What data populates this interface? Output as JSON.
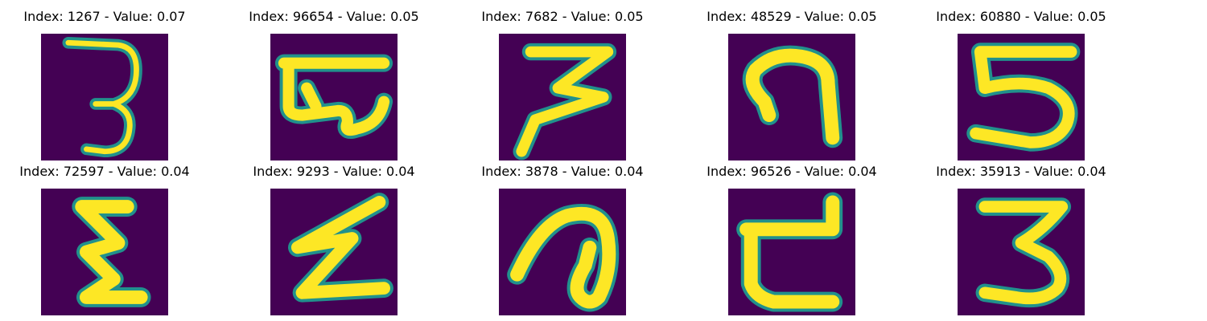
{
  "chart_data": {
    "type": "image_grid",
    "grid": {
      "rows": 2,
      "cols": 5
    },
    "colormap": {
      "background": "#440154",
      "edge": "#21918c",
      "foreground": "#fde725"
    },
    "panels": [
      {
        "index": 1267,
        "value": 0.07,
        "title": "Index: 1267 - Value: 0.07",
        "glyph": "thin-3"
      },
      {
        "index": 96654,
        "value": 0.05,
        "title": "Index: 96654 - Value: 0.05",
        "glyph": "bar-loop"
      },
      {
        "index": 7682,
        "value": 0.05,
        "title": "Index: 7682 - Value: 0.05",
        "glyph": "zigzag-3"
      },
      {
        "index": 48529,
        "value": 0.05,
        "title": "Index: 48529 - Value: 0.05",
        "glyph": "hook"
      },
      {
        "index": 60880,
        "value": 0.05,
        "title": "Index: 60880 - Value: 0.05",
        "glyph": "five"
      },
      {
        "index": 72597,
        "value": 0.04,
        "title": "Index: 72597 - Value: 0.04",
        "glyph": "sigma"
      },
      {
        "index": 9293,
        "value": 0.04,
        "title": "Index: 9293 - Value: 0.04",
        "glyph": "zigzag-z"
      },
      {
        "index": 3878,
        "value": 0.04,
        "title": "Index: 3878 - Value: 0.04",
        "glyph": "loop-a"
      },
      {
        "index": 96526,
        "value": 0.04,
        "title": "Index: 96526 - Value: 0.04",
        "glyph": "cup"
      },
      {
        "index": 35913,
        "value": 0.04,
        "title": "Index: 35913 - Value: 0.04",
        "glyph": "three"
      }
    ]
  }
}
